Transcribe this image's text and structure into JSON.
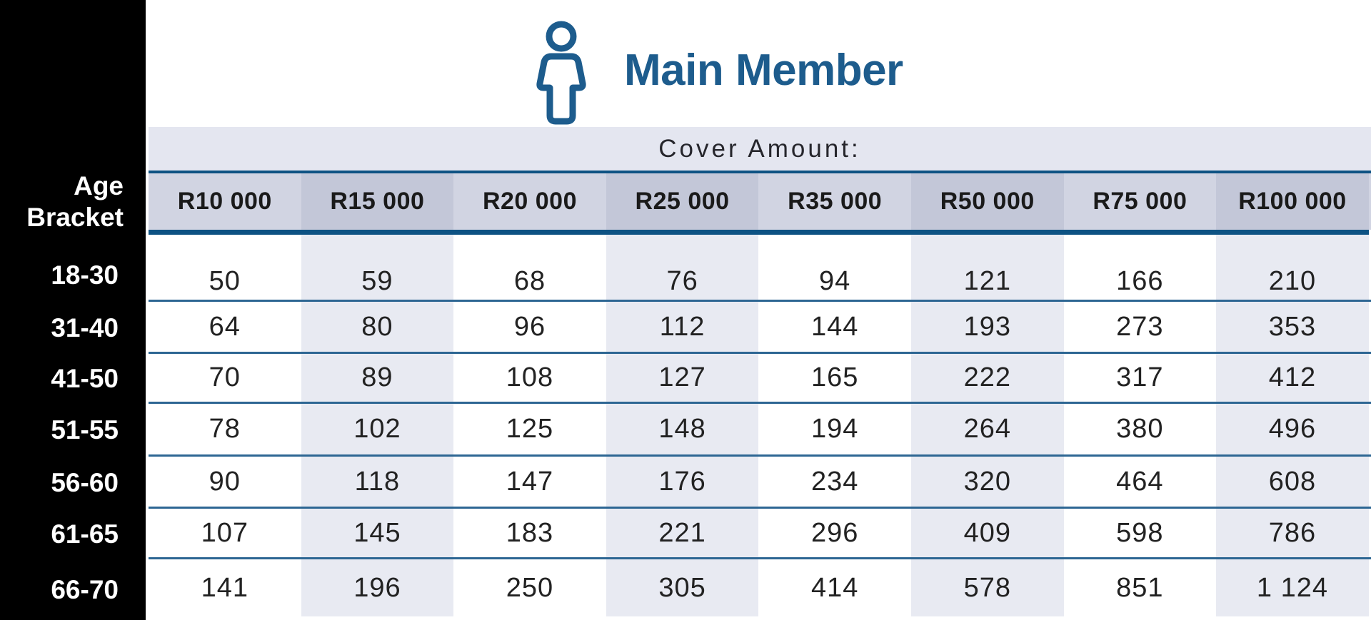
{
  "title": {
    "icon": "person-icon",
    "text": "Main Member"
  },
  "cover_label": "Cover Amount:",
  "age_header": {
    "line1": "Age",
    "line2": "Bracket"
  },
  "chart_data": {
    "type": "table",
    "title": "Main Member",
    "cover_amount_label": "Cover Amount:",
    "row_header": "Age Bracket",
    "columns": [
      "R10 000",
      "R15 000",
      "R20 000",
      "R25 000",
      "R35 000",
      "R50 000",
      "R75 000",
      "R100 000"
    ],
    "rows": [
      {
        "age": "18-30",
        "values": [
          "50",
          "59",
          "68",
          "76",
          "94",
          "121",
          "166",
          "210"
        ]
      },
      {
        "age": "31-40",
        "values": [
          "64",
          "80",
          "96",
          "112",
          "144",
          "193",
          "273",
          "353"
        ]
      },
      {
        "age": "41-50",
        "values": [
          "70",
          "89",
          "108",
          "127",
          "165",
          "222",
          "317",
          "412"
        ]
      },
      {
        "age": "51-55",
        "values": [
          "78",
          "102",
          "125",
          "148",
          "194",
          "264",
          "380",
          "496"
        ]
      },
      {
        "age": "56-60",
        "values": [
          "90",
          "118",
          "147",
          "176",
          "234",
          "320",
          "464",
          "608"
        ]
      },
      {
        "age": "61-65",
        "values": [
          "107",
          "145",
          "183",
          "221",
          "296",
          "409",
          "598",
          "786"
        ]
      },
      {
        "age": "66-70",
        "values": [
          "141",
          "196",
          "250",
          "305",
          "414",
          "578",
          "851",
          "1 124"
        ]
      }
    ]
  },
  "colors": {
    "brand_blue": "#1d5c8d",
    "line_blue": "#0d5283",
    "separator_blue": "#2d6693",
    "cover_row_bg": "#e4e6f0",
    "header_col_light": "#d1d4e2",
    "header_col_dark": "#c3c7d8",
    "stripe": "#e8eaf2",
    "sidebar_bg": "#000000",
    "text_dark": "#222222"
  }
}
